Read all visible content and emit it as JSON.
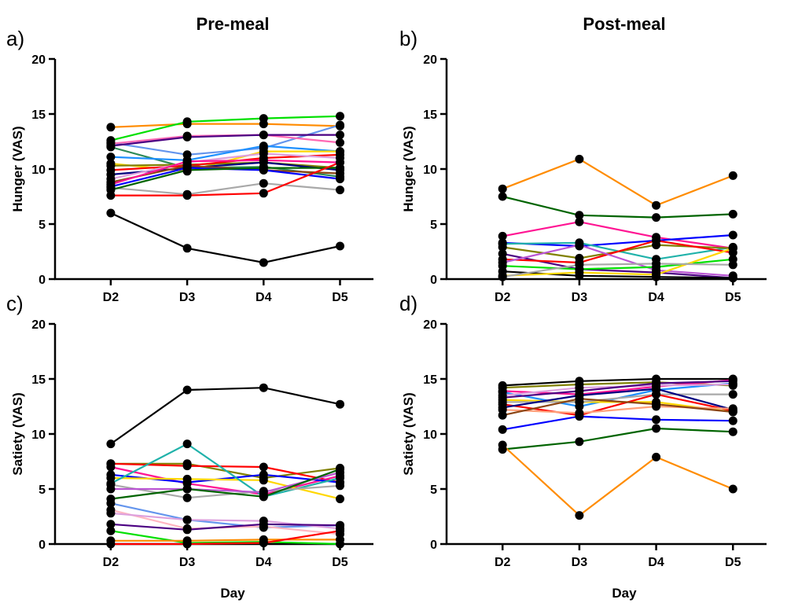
{
  "figure": {
    "column_titles": [
      "Pre-meal",
      "Post-meal"
    ]
  },
  "colors": [
    "#ff8c00",
    "#00e000",
    "#6495ed",
    "#ff69b4",
    "#4b0082",
    "#2e8b57",
    "#1e90ff",
    "#ffd700",
    "#228b22",
    "#ff0000",
    "#000080",
    "#dda0dd",
    "#8b4513",
    "#808000",
    "#ffa07a",
    "#ba55d3",
    "#20b2aa",
    "#0000ff",
    "#008b8b",
    "#ff1493",
    "#000000",
    "#006400",
    "#f0e68c",
    "#a9a9a9",
    "#ffb6c1"
  ],
  "chart_data": [
    {
      "id": "a",
      "panel_label": "a)",
      "type": "line",
      "title": "",
      "categories": [
        "D2",
        "D3",
        "D4",
        "D5"
      ],
      "xlabel": "",
      "ylabel": "Hunger (VAS)",
      "ylim": [
        0,
        20
      ],
      "yticks": [
        0,
        5,
        10,
        15,
        20
      ],
      "grid": false,
      "series": [
        {
          "color": "#ff8c00",
          "values": [
            13.8,
            14.1,
            14.1,
            13.9
          ]
        },
        {
          "color": "#00e000",
          "values": [
            12.6,
            14.3,
            14.6,
            14.8
          ]
        },
        {
          "color": "#6495ed",
          "values": [
            12.4,
            11.3,
            11.9,
            14.0
          ]
        },
        {
          "color": "#ff69b4",
          "values": [
            12.3,
            13.0,
            13.1,
            12.4
          ]
        },
        {
          "color": "#4b0082",
          "values": [
            12.1,
            12.9,
            13.1,
            13.1
          ]
        },
        {
          "color": "#2e8b57",
          "values": [
            12.0,
            10.1,
            10.2,
            9.3
          ]
        },
        {
          "color": "#1e90ff",
          "values": [
            11.1,
            10.8,
            12.1,
            11.6
          ]
        },
        {
          "color": "#ffd700",
          "values": [
            10.5,
            9.8,
            11.6,
            11.6
          ]
        },
        {
          "color": "#808000",
          "values": [
            10.3,
            10.4,
            10.6,
            10.1
          ]
        },
        {
          "color": "#ff0000",
          "values": [
            9.9,
            10.3,
            11.0,
            11.3
          ]
        },
        {
          "color": "#000080",
          "values": [
            9.5,
            10.1,
            10.6,
            9.9
          ]
        },
        {
          "color": "#dda0dd",
          "values": [
            9.1,
            10.6,
            11.4,
            11.0
          ]
        },
        {
          "color": "#8b4513",
          "values": [
            8.8,
            10.3,
            9.9,
            9.6
          ]
        },
        {
          "color": "#ff1493",
          "values": [
            8.6,
            10.7,
            10.8,
            10.6
          ]
        },
        {
          "color": "#0000ff",
          "values": [
            8.4,
            10.1,
            9.9,
            9.1
          ]
        },
        {
          "color": "#a9a9a9",
          "values": [
            8.3,
            7.7,
            8.7,
            8.1
          ]
        },
        {
          "color": "#006400",
          "values": [
            8.1,
            9.9,
            10.1,
            10.1
          ]
        },
        {
          "color": "#ff0000",
          "values": [
            7.6,
            7.6,
            7.8,
            10.6
          ]
        },
        {
          "color": "#000000",
          "values": [
            6.0,
            2.8,
            1.5,
            3.0
          ]
        }
      ]
    },
    {
      "id": "b",
      "panel_label": "b)",
      "type": "line",
      "title": "",
      "categories": [
        "D2",
        "D3",
        "D4",
        "D5"
      ],
      "xlabel": "",
      "ylabel": "Hunger (VAS)",
      "ylim": [
        0,
        20
      ],
      "yticks": [
        0,
        5,
        10,
        15,
        20
      ],
      "grid": false,
      "series": [
        {
          "color": "#ff8c00",
          "values": [
            8.2,
            10.9,
            6.7,
            9.4
          ]
        },
        {
          "color": "#006400",
          "values": [
            7.5,
            5.8,
            5.6,
            5.9
          ]
        },
        {
          "color": "#ff1493",
          "values": [
            3.9,
            5.2,
            3.8,
            2.8
          ]
        },
        {
          "color": "#0000ff",
          "values": [
            3.3,
            3.0,
            3.5,
            4.0
          ]
        },
        {
          "color": "#20b2aa",
          "values": [
            3.2,
            3.3,
            1.8,
            2.9
          ]
        },
        {
          "color": "#808000",
          "values": [
            2.9,
            1.9,
            3.1,
            2.8
          ]
        },
        {
          "color": "#4b0082",
          "values": [
            2.3,
            0.9,
            0.6,
            0.1
          ]
        },
        {
          "color": "#ff0000",
          "values": [
            1.8,
            1.5,
            3.5,
            2.4
          ]
        },
        {
          "color": "#ba55d3",
          "values": [
            1.5,
            3.1,
            0.8,
            0.3
          ]
        },
        {
          "color": "#00e000",
          "values": [
            1.2,
            0.9,
            1.1,
            1.8
          ]
        },
        {
          "color": "#000000",
          "values": [
            0.7,
            0.3,
            0.2,
            0.1
          ]
        },
        {
          "color": "#ffd700",
          "values": [
            0.3,
            0.6,
            0.4,
            2.8
          ]
        },
        {
          "color": "#a9a9a9",
          "values": [
            0.2,
            1.3,
            1.4,
            1.3
          ]
        }
      ]
    },
    {
      "id": "c",
      "panel_label": "c)",
      "type": "line",
      "title": "",
      "categories": [
        "D2",
        "D3",
        "D4",
        "D5"
      ],
      "xlabel": "",
      "ylabel": "Satiety (VAS)",
      "ylim": [
        0,
        20
      ],
      "yticks": [
        0,
        5,
        10,
        15,
        20
      ],
      "grid": false,
      "series": [
        {
          "color": "#000000",
          "values": [
            9.1,
            14.0,
            14.2,
            12.7
          ]
        },
        {
          "color": "#808000",
          "values": [
            7.3,
            7.3,
            6.0,
            6.9
          ]
        },
        {
          "color": "#ff0000",
          "values": [
            7.3,
            7.1,
            7.0,
            5.6
          ]
        },
        {
          "color": "#ff1493",
          "values": [
            7.0,
            5.5,
            4.5,
            6.2
          ]
        },
        {
          "color": "#0000ff",
          "values": [
            6.3,
            5.6,
            6.3,
            5.6
          ]
        },
        {
          "color": "#ffd700",
          "values": [
            6.0,
            5.9,
            5.8,
            4.1
          ]
        },
        {
          "color": "#20b2aa",
          "values": [
            5.5,
            9.1,
            4.3,
            6.0
          ]
        },
        {
          "color": "#a9a9a9",
          "values": [
            5.4,
            4.2,
            4.8,
            5.3
          ]
        },
        {
          "color": "#ba55d3",
          "values": [
            5.0,
            5.0,
            4.7,
            6.5
          ]
        },
        {
          "color": "#006400",
          "values": [
            4.1,
            5.0,
            4.3,
            6.8
          ]
        },
        {
          "color": "#6495ed",
          "values": [
            3.7,
            2.2,
            1.5,
            1.7
          ]
        },
        {
          "color": "#ffb6c1",
          "values": [
            3.1,
            1.4,
            1.6,
            0.9
          ]
        },
        {
          "color": "#dda0dd",
          "values": [
            2.8,
            2.2,
            2.1,
            1.4
          ]
        },
        {
          "color": "#4b0082",
          "values": [
            1.8,
            1.3,
            1.8,
            1.7
          ]
        },
        {
          "color": "#00e000",
          "values": [
            1.2,
            0.1,
            0.2,
            0.0
          ]
        },
        {
          "color": "#ff8c00",
          "values": [
            0.3,
            0.3,
            0.4,
            0.4
          ]
        },
        {
          "color": "#ff0000",
          "values": [
            0.0,
            0.0,
            0.1,
            1.2
          ]
        }
      ]
    },
    {
      "id": "d",
      "panel_label": "d)",
      "type": "line",
      "title": "",
      "categories": [
        "D2",
        "D3",
        "D4",
        "D5"
      ],
      "xlabel": "Day",
      "ylabel": "Satiety (VAS)",
      "ylim": [
        0,
        20
      ],
      "yticks": [
        0,
        5,
        10,
        15,
        20
      ],
      "grid": false,
      "series": [
        {
          "color": "#000000",
          "values": [
            14.4,
            14.8,
            15.0,
            15.0
          ]
        },
        {
          "color": "#808000",
          "values": [
            14.2,
            14.5,
            14.7,
            14.4
          ]
        },
        {
          "color": "#ff1493",
          "values": [
            13.9,
            13.6,
            14.3,
            14.9
          ]
        },
        {
          "color": "#1e90ff",
          "values": [
            13.8,
            12.5,
            14.0,
            14.6
          ]
        },
        {
          "color": "#dda0dd",
          "values": [
            13.5,
            14.2,
            14.4,
            14.5
          ]
        },
        {
          "color": "#4b0082",
          "values": [
            13.3,
            13.9,
            14.6,
            14.8
          ]
        },
        {
          "color": "#ffd700",
          "values": [
            13.1,
            12.9,
            12.9,
            12.0
          ]
        },
        {
          "color": "#a9a9a9",
          "values": [
            12.9,
            12.9,
            13.6,
            13.6
          ]
        },
        {
          "color": "#ff0000",
          "values": [
            12.7,
            11.7,
            13.6,
            12.1
          ]
        },
        {
          "color": "#000080",
          "values": [
            12.4,
            13.5,
            14.1,
            12.2
          ]
        },
        {
          "color": "#ffa07a",
          "values": [
            12.2,
            11.9,
            12.5,
            12.3
          ]
        },
        {
          "color": "#8b4513",
          "values": [
            11.7,
            13.2,
            12.7,
            12.0
          ]
        },
        {
          "color": "#0000ff",
          "values": [
            10.4,
            11.6,
            11.3,
            11.2
          ]
        },
        {
          "color": "#006400",
          "values": [
            8.6,
            9.3,
            10.5,
            10.2
          ]
        },
        {
          "color": "#ff8c00",
          "values": [
            9.0,
            2.6,
            7.9,
            5.0
          ]
        }
      ]
    }
  ],
  "shared_xlabel": "Day"
}
